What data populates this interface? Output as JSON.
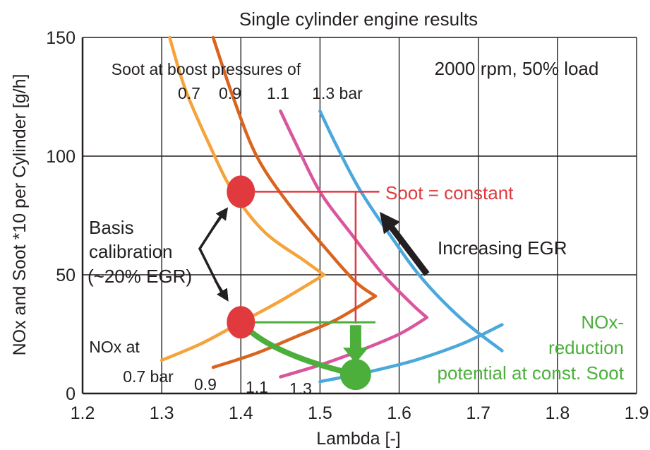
{
  "chart_data": {
    "type": "line",
    "title": "Single cylinder engine results",
    "xlabel": "Lambda [-]",
    "ylabel": "NOx and Soot *10 per Cylinder [g/h]",
    "xlim": [
      1.2,
      1.9
    ],
    "ylim": [
      0,
      150
    ],
    "x_ticks": [
      "1.2",
      "1.3",
      "1.4",
      "1.5",
      "1.6",
      "1.7",
      "1.8",
      "1.9"
    ],
    "y_ticks": [
      "0",
      "50",
      "100",
      "150"
    ],
    "grid": true,
    "condition": "2000 rpm, 50% load",
    "colors": {
      "0.7": "#f5a33a",
      "0.9": "#d9641e",
      "1.1": "#d9569e",
      "1.3": "#4aa8dc",
      "soot_constant": "#e03a3e",
      "nox_reduction": "#4caf3c",
      "arrows": "#231f20"
    },
    "soot_label_header": "Soot at boost pressures of",
    "soot_series_labels": [
      "0.7",
      "0.9",
      "1.1",
      "1.3 bar"
    ],
    "nox_label_header": "NOx at",
    "nox_series_labels": [
      "0.7 bar",
      "0.9",
      "1.1",
      "1.3"
    ],
    "soot_series": [
      {
        "name": "0.7",
        "x": [
          1.31,
          1.33,
          1.36,
          1.39,
          1.43,
          1.48,
          1.505
        ],
        "y": [
          150,
          128,
          105,
          85,
          68,
          56,
          50
        ]
      },
      {
        "name": "0.9",
        "x": [
          1.365,
          1.39,
          1.42,
          1.46,
          1.51,
          1.545,
          1.57
        ],
        "y": [
          150,
          125,
          100,
          80,
          60,
          47,
          41
        ]
      },
      {
        "name": "1.1",
        "x": [
          1.45,
          1.47,
          1.5,
          1.54,
          1.58,
          1.615,
          1.635
        ],
        "y": [
          119,
          105,
          85,
          67,
          50,
          38,
          32
        ]
      },
      {
        "name": "1.3 bar",
        "x": [
          1.5,
          1.52,
          1.55,
          1.59,
          1.63,
          1.68,
          1.73
        ],
        "y": [
          119,
          105,
          86,
          66,
          48,
          31,
          18
        ]
      }
    ],
    "nox_series": [
      {
        "name": "0.7 bar",
        "x": [
          1.3,
          1.35,
          1.4,
          1.45,
          1.505
        ],
        "y": [
          14,
          21,
          30,
          39,
          50
        ]
      },
      {
        "name": "0.9",
        "x": [
          1.365,
          1.42,
          1.47,
          1.52,
          1.57
        ],
        "y": [
          11,
          17,
          24,
          31,
          41
        ]
      },
      {
        "name": "1.1",
        "x": [
          1.45,
          1.5,
          1.55,
          1.6,
          1.635
        ],
        "y": [
          7,
          12,
          18,
          25,
          32
        ]
      },
      {
        "name": "1.3",
        "x": [
          1.5,
          1.56,
          1.62,
          1.68,
          1.73
        ],
        "y": [
          5,
          9,
          14,
          21,
          29
        ]
      }
    ],
    "basis_points": [
      {
        "label": "soot",
        "x": 1.4,
        "y": 85
      },
      {
        "label": "nox",
        "x": 1.4,
        "y": 30
      }
    ],
    "target_point": {
      "x": 1.545,
      "y": 8
    },
    "soot_constant_level": 85,
    "soot_constant_x": 1.545,
    "nox_basis_level": 30,
    "annotations": {
      "soot_constant": "Soot = constant",
      "increasing_egr": "Increasing EGR",
      "basis_line1": "Basis",
      "basis_line2": "calibration",
      "basis_line3": "(~20% EGR)",
      "nox_red_line1": "NOx-",
      "nox_red_line2": "reduction",
      "nox_red_line3": "potential at const. Soot"
    }
  }
}
